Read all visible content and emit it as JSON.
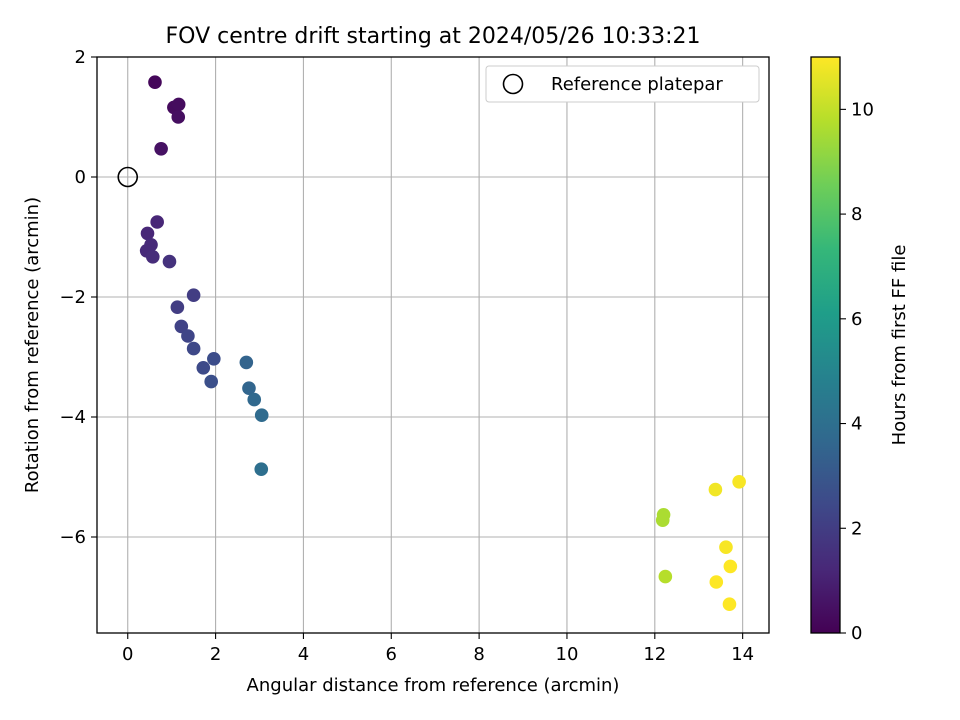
{
  "chart_data": {
    "type": "scatter",
    "title": "FOV centre drift starting at 2024/05/26 10:33:21",
    "xlabel": "Angular distance from reference (arcmin)",
    "ylabel": "Rotation from reference (arcmin)",
    "xlim": [
      -0.7,
      14.6
    ],
    "ylim": [
      -7.6,
      2.0
    ],
    "xticks": [
      0,
      2,
      4,
      6,
      8,
      10,
      12,
      14
    ],
    "yticks": [
      2,
      0,
      -2,
      -4,
      -6
    ],
    "xtick_labels": [
      "0",
      "2",
      "4",
      "6",
      "8",
      "10",
      "12",
      "14"
    ],
    "ytick_labels": [
      "2",
      "0",
      "−2",
      "−4",
      "−6"
    ],
    "grid": true,
    "legend": {
      "placement": "top-right",
      "entries": [
        {
          "label": "Reference platepar",
          "marker": "open-circle"
        }
      ]
    },
    "reference_point": {
      "x": 0,
      "y": 0
    },
    "colorbar": {
      "label": "Hours from first FF file",
      "range": [
        0,
        11
      ],
      "ticks": [
        0,
        2,
        4,
        6,
        8,
        10
      ],
      "tick_labels": [
        "0",
        "2",
        "4",
        "6",
        "8",
        "10"
      ],
      "colormap": [
        "#440154",
        "#482878",
        "#3e4989",
        "#31688e",
        "#26828e",
        "#1f9e89",
        "#35b779",
        "#6ece58",
        "#b5de2b",
        "#fde725"
      ]
    },
    "points": [
      {
        "x": 0.62,
        "y": 1.58,
        "c": 0.2
      },
      {
        "x": 1.05,
        "y": 1.16,
        "c": 0.3
      },
      {
        "x": 1.16,
        "y": 1.21,
        "c": 0.35
      },
      {
        "x": 1.15,
        "y": 1.0,
        "c": 0.4
      },
      {
        "x": 0.76,
        "y": 0.47,
        "c": 0.5
      },
      {
        "x": 0.67,
        "y": -0.75,
        "c": 1.2
      },
      {
        "x": 0.45,
        "y": -0.94,
        "c": 1.2
      },
      {
        "x": 0.53,
        "y": -1.13,
        "c": 1.3
      },
      {
        "x": 0.43,
        "y": -1.23,
        "c": 1.3
      },
      {
        "x": 0.57,
        "y": -1.33,
        "c": 1.4
      },
      {
        "x": 0.95,
        "y": -1.41,
        "c": 1.6
      },
      {
        "x": 1.13,
        "y": -2.17,
        "c": 2.0
      },
      {
        "x": 1.5,
        "y": -1.97,
        "c": 2.0
      },
      {
        "x": 1.22,
        "y": -2.49,
        "c": 2.2
      },
      {
        "x": 1.37,
        "y": -2.65,
        "c": 2.3
      },
      {
        "x": 1.5,
        "y": -2.86,
        "c": 2.4
      },
      {
        "x": 1.72,
        "y": -3.18,
        "c": 2.5
      },
      {
        "x": 1.96,
        "y": -3.03,
        "c": 2.6
      },
      {
        "x": 1.9,
        "y": -3.41,
        "c": 2.7
      },
      {
        "x": 2.7,
        "y": -3.09,
        "c": 3.5
      },
      {
        "x": 2.76,
        "y": -3.52,
        "c": 3.6
      },
      {
        "x": 2.88,
        "y": -3.71,
        "c": 3.7
      },
      {
        "x": 3.05,
        "y": -3.97,
        "c": 3.8
      },
      {
        "x": 3.04,
        "y": -4.87,
        "c": 4.0
      },
      {
        "x": 12.2,
        "y": -5.63,
        "c": 9.6
      },
      {
        "x": 12.18,
        "y": -5.72,
        "c": 9.6
      },
      {
        "x": 12.24,
        "y": -6.66,
        "c": 9.8
      },
      {
        "x": 13.38,
        "y": -5.21,
        "c": 10.8
      },
      {
        "x": 13.92,
        "y": -5.08,
        "c": 10.9
      },
      {
        "x": 13.62,
        "y": -6.17,
        "c": 10.9
      },
      {
        "x": 13.72,
        "y": -6.49,
        "c": 11.0
      },
      {
        "x": 13.4,
        "y": -6.75,
        "c": 11.0
      },
      {
        "x": 13.7,
        "y": -7.12,
        "c": 11.0
      }
    ]
  }
}
